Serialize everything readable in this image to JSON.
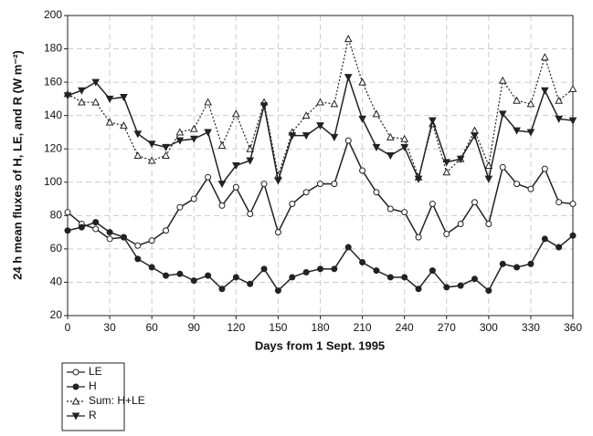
{
  "chart_data": {
    "type": "line",
    "y_label": "24 h mean fluxes of H, LE, and R (W m⁻²)",
    "x_label": "Days from 1 Sept. 1995",
    "x": [
      0,
      10,
      20,
      30,
      40,
      50,
      60,
      70,
      80,
      90,
      100,
      110,
      120,
      130,
      140,
      150,
      160,
      170,
      180,
      190,
      200,
      210,
      220,
      230,
      240,
      250,
      260,
      270,
      280,
      290,
      300,
      310,
      320,
      330,
      340,
      350,
      360
    ],
    "series": [
      {
        "name": "LE",
        "color": "#222222",
        "marker": "circle-open",
        "dashed": false,
        "values": [
          82,
          75,
          72,
          66,
          67,
          62,
          65,
          71,
          85,
          90,
          103,
          86,
          97,
          81,
          99,
          70,
          87,
          94,
          99,
          99,
          125,
          107,
          94,
          84,
          82,
          67,
          87,
          69,
          75,
          88,
          75,
          109,
          99,
          96,
          108,
          88,
          87
        ]
      },
      {
        "name": "H",
        "color": "#222222",
        "marker": "circle",
        "dashed": false,
        "values": [
          71,
          73,
          76,
          70,
          67,
          54,
          49,
          44,
          45,
          41,
          44,
          36,
          43,
          39,
          48,
          35,
          43,
          46,
          48,
          48,
          61,
          52,
          47,
          43,
          43,
          36,
          47,
          37,
          38,
          42,
          35,
          51,
          49,
          51,
          66,
          61,
          68
        ]
      },
      {
        "name": "Sum: H+LE",
        "color": "#222222",
        "marker": "triangle-open",
        "dashed": true,
        "values": [
          153,
          148,
          148,
          136,
          134,
          116,
          113,
          116,
          130,
          132,
          148,
          122,
          141,
          120,
          148,
          104,
          130,
          140,
          148,
          147,
          186,
          160,
          141,
          127,
          126,
          103,
          135,
          106,
          114,
          131,
          110,
          161,
          149,
          147,
          175,
          149,
          156
        ]
      },
      {
        "name": "R",
        "color": "#222222",
        "marker": "triangle-down",
        "dashed": false,
        "values": [
          152,
          155,
          160,
          150,
          151,
          129,
          123,
          121,
          125,
          126,
          130,
          99,
          110,
          113,
          146,
          101,
          128,
          128,
          134,
          127,
          163,
          138,
          121,
          116,
          121,
          102,
          137,
          112,
          114,
          128,
          102,
          141,
          131,
          130,
          155,
          138,
          137
        ]
      }
    ],
    "xlim": [
      0,
      360
    ],
    "xticks": [
      0,
      30,
      60,
      90,
      120,
      150,
      180,
      210,
      240,
      270,
      300,
      330,
      360
    ],
    "ylim": [
      20,
      200
    ],
    "yticks": [
      20,
      40,
      60,
      80,
      100,
      120,
      140,
      160,
      180,
      200
    ],
    "grid": true,
    "legend": "bottom-left"
  }
}
